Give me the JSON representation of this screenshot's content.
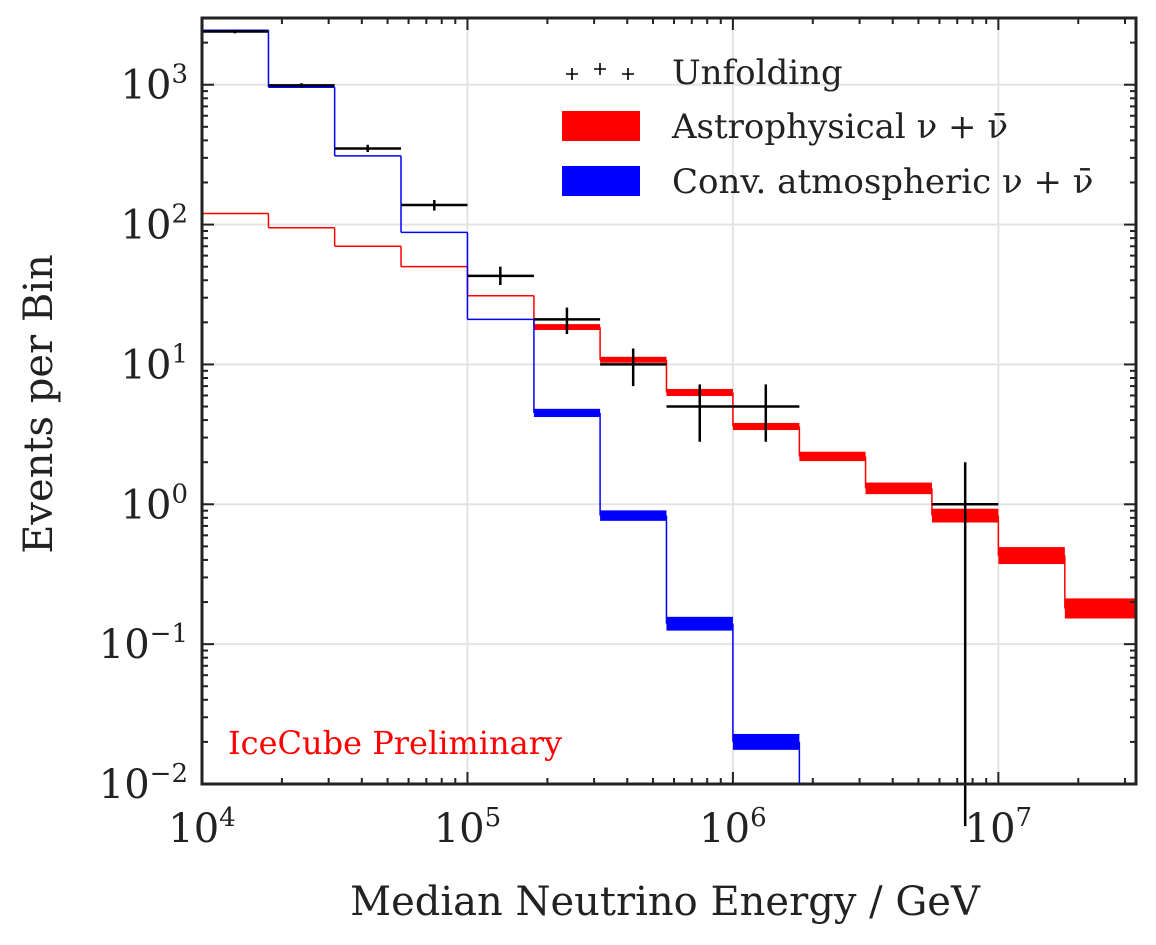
{
  "chart_data": {
    "type": "step-histogram",
    "xscale": "log",
    "yscale": "log",
    "xlabel": "Median Neutrino Energy / GeV",
    "ylabel": "Events per Bin",
    "xlim": [
      10000,
      33000000
    ],
    "ylim": [
      0.01,
      3000
    ],
    "grid": true,
    "legend_position": "top-right",
    "x_tick_labels": [
      {
        "value": 10000,
        "base": "10",
        "exp": "4"
      },
      {
        "value": 100000,
        "base": "10",
        "exp": "5"
      },
      {
        "value": 1000000,
        "base": "10",
        "exp": "6"
      },
      {
        "value": 10000000,
        "base": "10",
        "exp": "7"
      }
    ],
    "y_tick_labels": [
      {
        "value": 1000,
        "base": "10",
        "exp": "3"
      },
      {
        "value": 100,
        "base": "10",
        "exp": "2"
      },
      {
        "value": 10,
        "base": "10",
        "exp": "1"
      },
      {
        "value": 1,
        "base": "10",
        "exp": "0"
      },
      {
        "value": 0.1,
        "base": "10",
        "exp": "−1"
      },
      {
        "value": 0.01,
        "base": "10",
        "exp": "−2"
      }
    ],
    "bin_edges": [
      10000,
      17800,
      31600,
      56200,
      100000,
      178000,
      316000,
      562000,
      1000000,
      1780000,
      3160000,
      5620000,
      10000000,
      17800000,
      33000000
    ],
    "series": [
      {
        "name": "Astrophysical ν + ν̄",
        "color": "#ff0000",
        "values": [
          120,
          95,
          70,
          50,
          31,
          18.5,
          10.8,
          6.3,
          3.6,
          2.2,
          1.3,
          0.83,
          0.43,
          0.18
        ],
        "band_width": [
          0,
          0,
          0,
          0,
          0,
          0.05,
          0.05,
          0.06,
          0.06,
          0.08,
          0.1,
          0.12,
          0.15,
          0.18
        ]
      },
      {
        "name": "Conv. atmospheric ν + ν̄",
        "color": "#0000ff",
        "values": [
          2450,
          960,
          310,
          88,
          21,
          4.5,
          0.83,
          0.14,
          0.02,
          null,
          null,
          null,
          null,
          null
        ],
        "band_width": [
          0,
          0,
          0,
          0,
          0,
          0.07,
          0.09,
          0.12,
          0.14,
          0,
          0,
          0,
          0,
          0
        ]
      }
    ],
    "unfolding": {
      "name": "Unfolding",
      "color": "#000000",
      "points": [
        {
          "x": 13300,
          "xlo": 10000,
          "xhi": 17800,
          "y": 2400,
          "ylo": 2330,
          "yhi": 2470
        },
        {
          "x": 23700,
          "xlo": 17800,
          "xhi": 31600,
          "y": 990,
          "ylo": 955,
          "yhi": 1025
        },
        {
          "x": 42100,
          "xlo": 31600,
          "xhi": 56200,
          "y": 350,
          "ylo": 330,
          "yhi": 372
        },
        {
          "x": 75000,
          "xlo": 56200,
          "xhi": 100000,
          "y": 138,
          "ylo": 126,
          "yhi": 150
        },
        {
          "x": 133000,
          "xlo": 100000,
          "xhi": 178000,
          "y": 43,
          "ylo": 37,
          "yhi": 50
        },
        {
          "x": 237000,
          "xlo": 178000,
          "xhi": 316000,
          "y": 21,
          "ylo": 16.5,
          "yhi": 25.5
        },
        {
          "x": 421000,
          "xlo": 316000,
          "xhi": 562000,
          "y": 10,
          "ylo": 7,
          "yhi": 13
        },
        {
          "x": 750000,
          "xlo": 562000,
          "xhi": 1000000,
          "y": 5,
          "ylo": 2.8,
          "yhi": 7.2
        },
        {
          "x": 1330000,
          "xlo": 1000000,
          "xhi": 1780000,
          "y": 5,
          "ylo": 2.8,
          "yhi": 7.2
        },
        {
          "x": 7500000,
          "xlo": 5620000,
          "xhi": 10000000,
          "y": 1,
          "ylo": 0.0001,
          "yhi": 2
        }
      ]
    },
    "legend": [
      {
        "label": "Unfolding",
        "kind": "marker",
        "color": "#000000"
      },
      {
        "label": "Astrophysical ν + ν̄",
        "kind": "band",
        "color": "#ff0000"
      },
      {
        "label": "Conv. atmospheric ν + ν̄",
        "kind": "band",
        "color": "#0000ff"
      }
    ],
    "annotation": {
      "text": "IceCube Preliminary",
      "color": "#ff0000",
      "position": "bottom-left"
    }
  }
}
